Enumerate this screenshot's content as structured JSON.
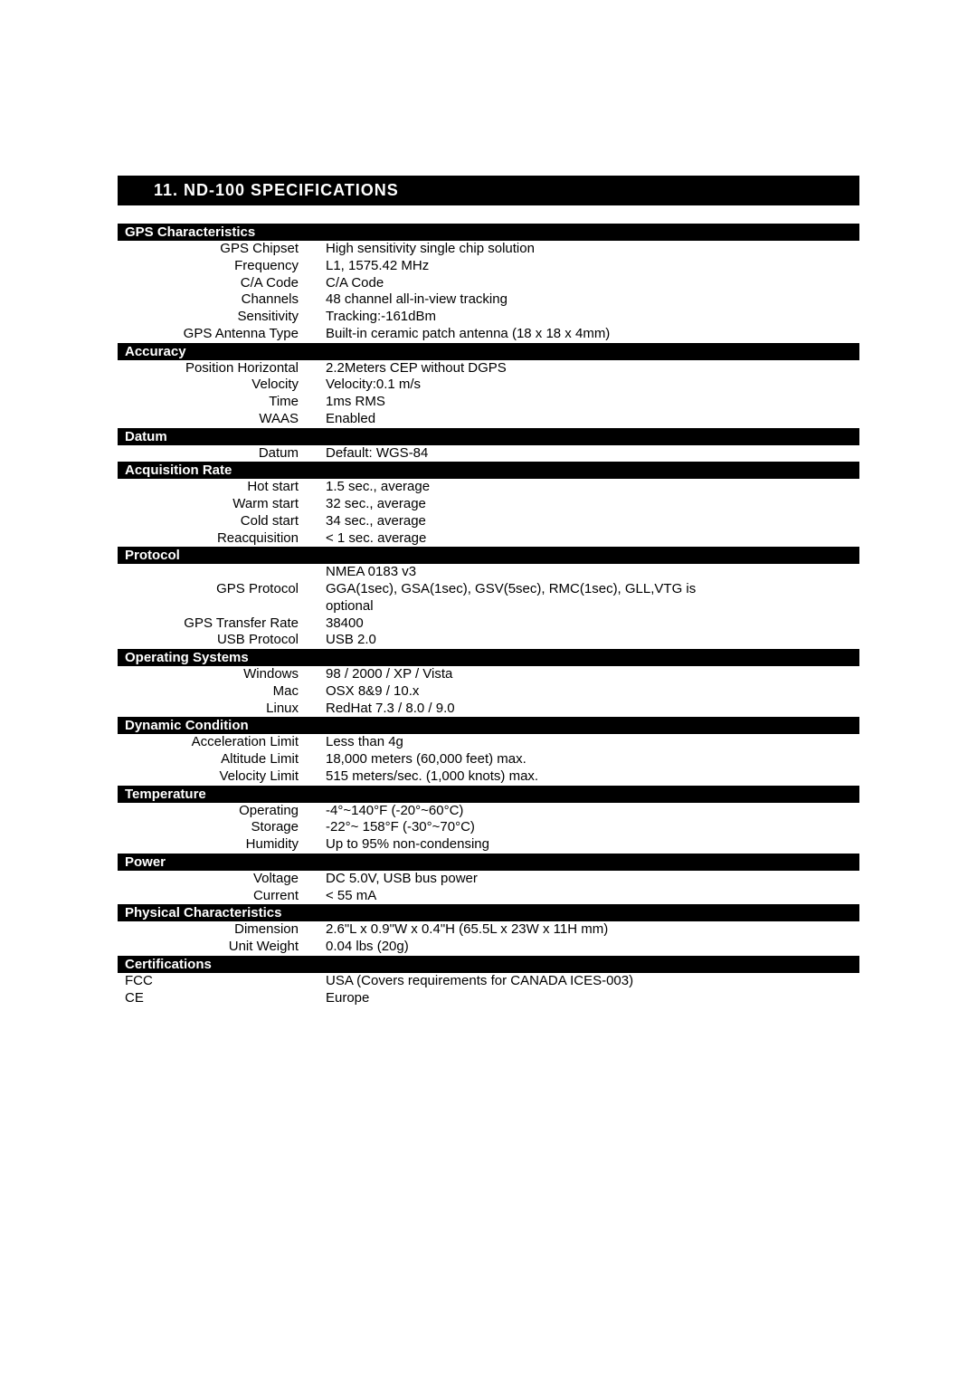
{
  "title": "11. ND-100 SPECIFICATIONS",
  "sections": [
    {
      "header": "GPS Characteristics",
      "rows": [
        {
          "label": "GPS Chipset",
          "value": "High sensitivity single chip solution"
        },
        {
          "label": "Frequency",
          "value": "L1, 1575.42 MHz"
        },
        {
          "label": "C/A Code",
          "value": "C/A Code"
        },
        {
          "label": "Channels",
          "value": "48 channel all-in-view tracking"
        },
        {
          "label": "Sensitivity",
          "value": "Tracking:-161dBm"
        },
        {
          "label": "GPS Antenna Type",
          "value": "Built-in ceramic patch antenna (18 x 18 x 4mm)"
        }
      ]
    },
    {
      "header": "Accuracy",
      "rows": [
        {
          "label": "Position Horizontal",
          "value": "2.2Meters CEP without DGPS"
        },
        {
          "label": "Velocity",
          "value": "Velocity:0.1 m/s"
        },
        {
          "label": "Time",
          "value": "1ms RMS"
        },
        {
          "label": "WAAS",
          "value": "Enabled"
        }
      ]
    },
    {
      "header": "Datum",
      "rows": [
        {
          "label": "Datum",
          "value": "Default: WGS-84"
        }
      ]
    },
    {
      "header": "Acquisition Rate",
      "rows": [
        {
          "label": "Hot start",
          "value": "1.5 sec., average"
        },
        {
          "label": "Warm start",
          "value": "32 sec., average"
        },
        {
          "label": "Cold start",
          "value": "34 sec., average"
        },
        {
          "label": "Reacquisition",
          "value": "< 1 sec. average"
        }
      ]
    },
    {
      "header": "Protocol",
      "rows": [
        {
          "label": "",
          "value": "NMEA 0183 v3"
        },
        {
          "label": "GPS Protocol",
          "value": "GGA(1sec), GSA(1sec), GSV(5sec), RMC(1sec), GLL,VTG is"
        },
        {
          "label": "",
          "value": "optional"
        },
        {
          "label": "GPS Transfer Rate",
          "value": "38400"
        },
        {
          "label": "USB Protocol",
          "value": "USB 2.0"
        }
      ]
    },
    {
      "header": "Operating Systems",
      "rows": [
        {
          "label": "Windows",
          "value": "98 / 2000 / XP / Vista"
        },
        {
          "label": "Mac",
          "value": "OSX 8&9 / 10.x"
        },
        {
          "label": "Linux",
          "value": "RedHat 7.3 / 8.0 / 9.0"
        }
      ]
    },
    {
      "header": "Dynamic Condition",
      "rows": [
        {
          "label": "Acceleration Limit",
          "value": "Less than 4g"
        },
        {
          "label": "Altitude Limit",
          "value": "18,000 meters (60,000 feet) max."
        },
        {
          "label": "Velocity Limit",
          "value": "515 meters/sec. (1,000 knots) max."
        }
      ]
    },
    {
      "header": "Temperature",
      "rows": [
        {
          "label": "Operating",
          "value": "-4°~140°F  (-20°~60°C)"
        },
        {
          "label": "Storage",
          "value": "-22°~ 158°F  (-30°~70°C)"
        },
        {
          "label": "Humidity",
          "value": "Up to 95% non-condensing"
        }
      ]
    },
    {
      "header": "Power",
      "rows": [
        {
          "label": "Voltage",
          "value": "DC 5.0V, USB bus power"
        },
        {
          "label": "Current",
          "value": "< 55 mA"
        }
      ]
    },
    {
      "header": "Physical Characteristics",
      "rows": [
        {
          "label": "Dimension",
          "value": "2.6\"L x 0.9\"W x 0.4\"H   (65.5L x  23W x 11H mm)"
        },
        {
          "label": "Unit Weight",
          "value": "0.04 lbs  (20g)"
        }
      ]
    },
    {
      "header": "Certifications",
      "leftAlign": true,
      "rows": [
        {
          "label": "FCC",
          "value": "USA (Covers requirements for CANADA ICES-003)"
        },
        {
          "label": "CE",
          "value": "Europe"
        }
      ]
    }
  ]
}
